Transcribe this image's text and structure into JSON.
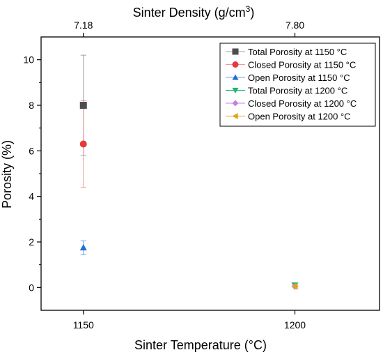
{
  "chart_data": {
    "type": "scatter",
    "xlabel": "Sinter Temperature (°C)",
    "ylabel": "Porosity (%)",
    "top_axis_title_main": "Sinter Density (g/cm",
    "top_axis_title_sup": "3",
    "top_axis_title_close": ")",
    "x_ticks": [
      1150,
      1200
    ],
    "x_tick_labels": [
      "1150",
      "1200"
    ],
    "top_ticks": [
      {
        "x": 1150,
        "label": "7.18"
      },
      {
        "x": 1200,
        "label": "7.80"
      }
    ],
    "y_ticks": [
      0,
      2,
      4,
      6,
      8,
      10
    ],
    "y_tick_labels": [
      "0",
      "2",
      "4",
      "6",
      "8",
      "10"
    ],
    "xlim": [
      1140,
      1220
    ],
    "ylim": [
      -1.0,
      11.0
    ],
    "grid": false,
    "legend_position": "top-right",
    "series": [
      {
        "name": "Total Porosity at 1150 °C",
        "marker": "square",
        "color": "#4d4d4d",
        "errcolor": "#a0a0a0",
        "points": [
          {
            "x": 1150,
            "y": 8.0,
            "err": 2.2
          }
        ]
      },
      {
        "name": "Closed Porosity at 1150 °C",
        "marker": "circle",
        "color": "#e8383d",
        "errcolor": "#f09a9c",
        "points": [
          {
            "x": 1150,
            "y": 6.3,
            "err": 1.9
          }
        ]
      },
      {
        "name": "Open Porosity at 1150 °C",
        "marker": "triangle-up",
        "color": "#1f6fd6",
        "errcolor": "#6fa3e6",
        "points": [
          {
            "x": 1150,
            "y": 1.75,
            "err": 0.3
          }
        ]
      },
      {
        "name": "Total Porosity at 1200 °C",
        "marker": "triangle-down",
        "color": "#1bb46a",
        "errcolor": "#1bb46a",
        "points": [
          {
            "x": 1200,
            "y": 0.1,
            "err": 0
          }
        ]
      },
      {
        "name": "Closed Porosity at 1200 °C",
        "marker": "diamond",
        "color": "#c77fe0",
        "errcolor": "#c77fe0",
        "points": [
          {
            "x": 1200,
            "y": 0.05,
            "err": 0
          }
        ]
      },
      {
        "name": "Open Porosity at 1200 °C",
        "marker": "triangle-left",
        "color": "#e0a418",
        "errcolor": "#e0a418",
        "points": [
          {
            "x": 1200,
            "y": 0.05,
            "err": 0
          }
        ]
      }
    ]
  }
}
